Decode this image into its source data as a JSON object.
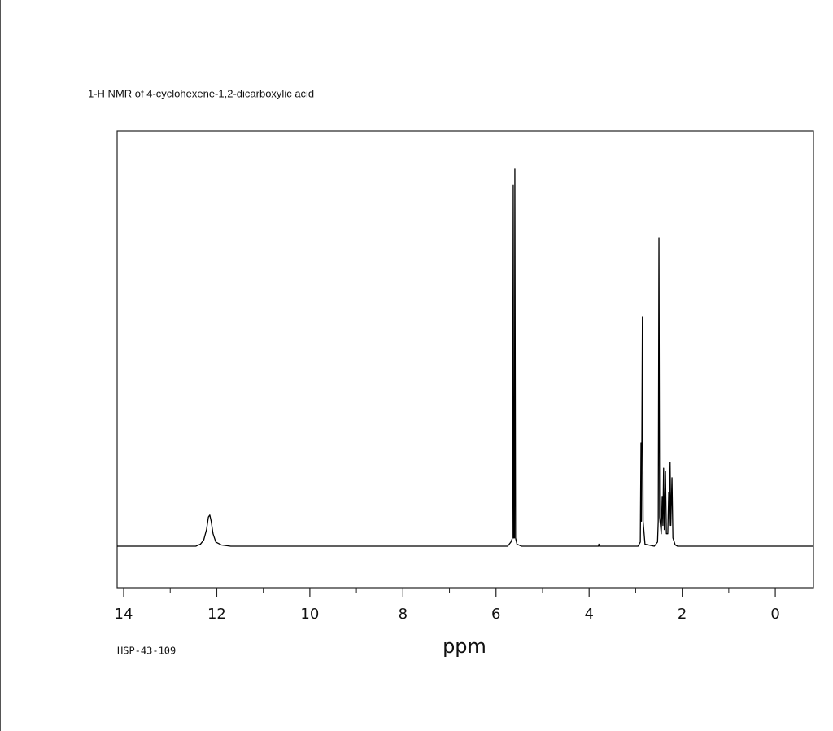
{
  "chart_data": {
    "type": "line",
    "title": "1-H NMR of 4-cyclohexene-1,2-dicarboxylic acid",
    "xlabel": "ppm",
    "annotation": "HSP-43-109",
    "color": "#000000",
    "x": [
      14.14,
      12.45,
      12.35,
      12.28,
      12.22,
      12.18,
      12.15,
      12.12,
      12.08,
      12.02,
      11.9,
      11.7,
      5.75,
      5.68,
      5.645,
      5.63,
      5.62,
      5.605,
      5.595,
      5.58,
      5.55,
      5.45,
      3.8,
      3.79,
      3.78,
      2.95,
      2.9,
      2.885,
      2.875,
      2.855,
      2.84,
      2.8,
      2.6,
      2.53,
      2.515,
      2.5,
      2.485,
      2.45,
      2.43,
      2.415,
      2.4,
      2.385,
      2.36,
      2.34,
      2.31,
      2.29,
      2.275,
      2.26,
      2.245,
      2.22,
      2.2,
      2.15,
      2.1,
      -0.82
    ],
    "values": [
      0,
      0,
      0.5,
      1.5,
      4,
      7,
      7.5,
      6,
      3,
      1,
      0.3,
      0,
      0,
      1,
      2,
      87,
      2,
      2,
      91,
      2,
      0.5,
      0,
      0,
      0.5,
      0,
      0,
      1,
      24.9,
      6,
      55.3,
      6,
      0.5,
      0,
      1,
      6,
      74.3,
      7,
      3,
      12,
      5,
      18.8,
      4,
      18,
      3,
      3,
      13,
      5,
      20.2,
      5,
      16.5,
      2,
      0.3,
      0,
      0
    ],
    "xlim": [
      14.14,
      -0.82
    ],
    "ylim": [
      -10,
      100
    ],
    "xticks": [
      14,
      12,
      10,
      8,
      6,
      4,
      2,
      0
    ],
    "minor_xticks": [
      13,
      11,
      9,
      7,
      5,
      3,
      1
    ]
  }
}
